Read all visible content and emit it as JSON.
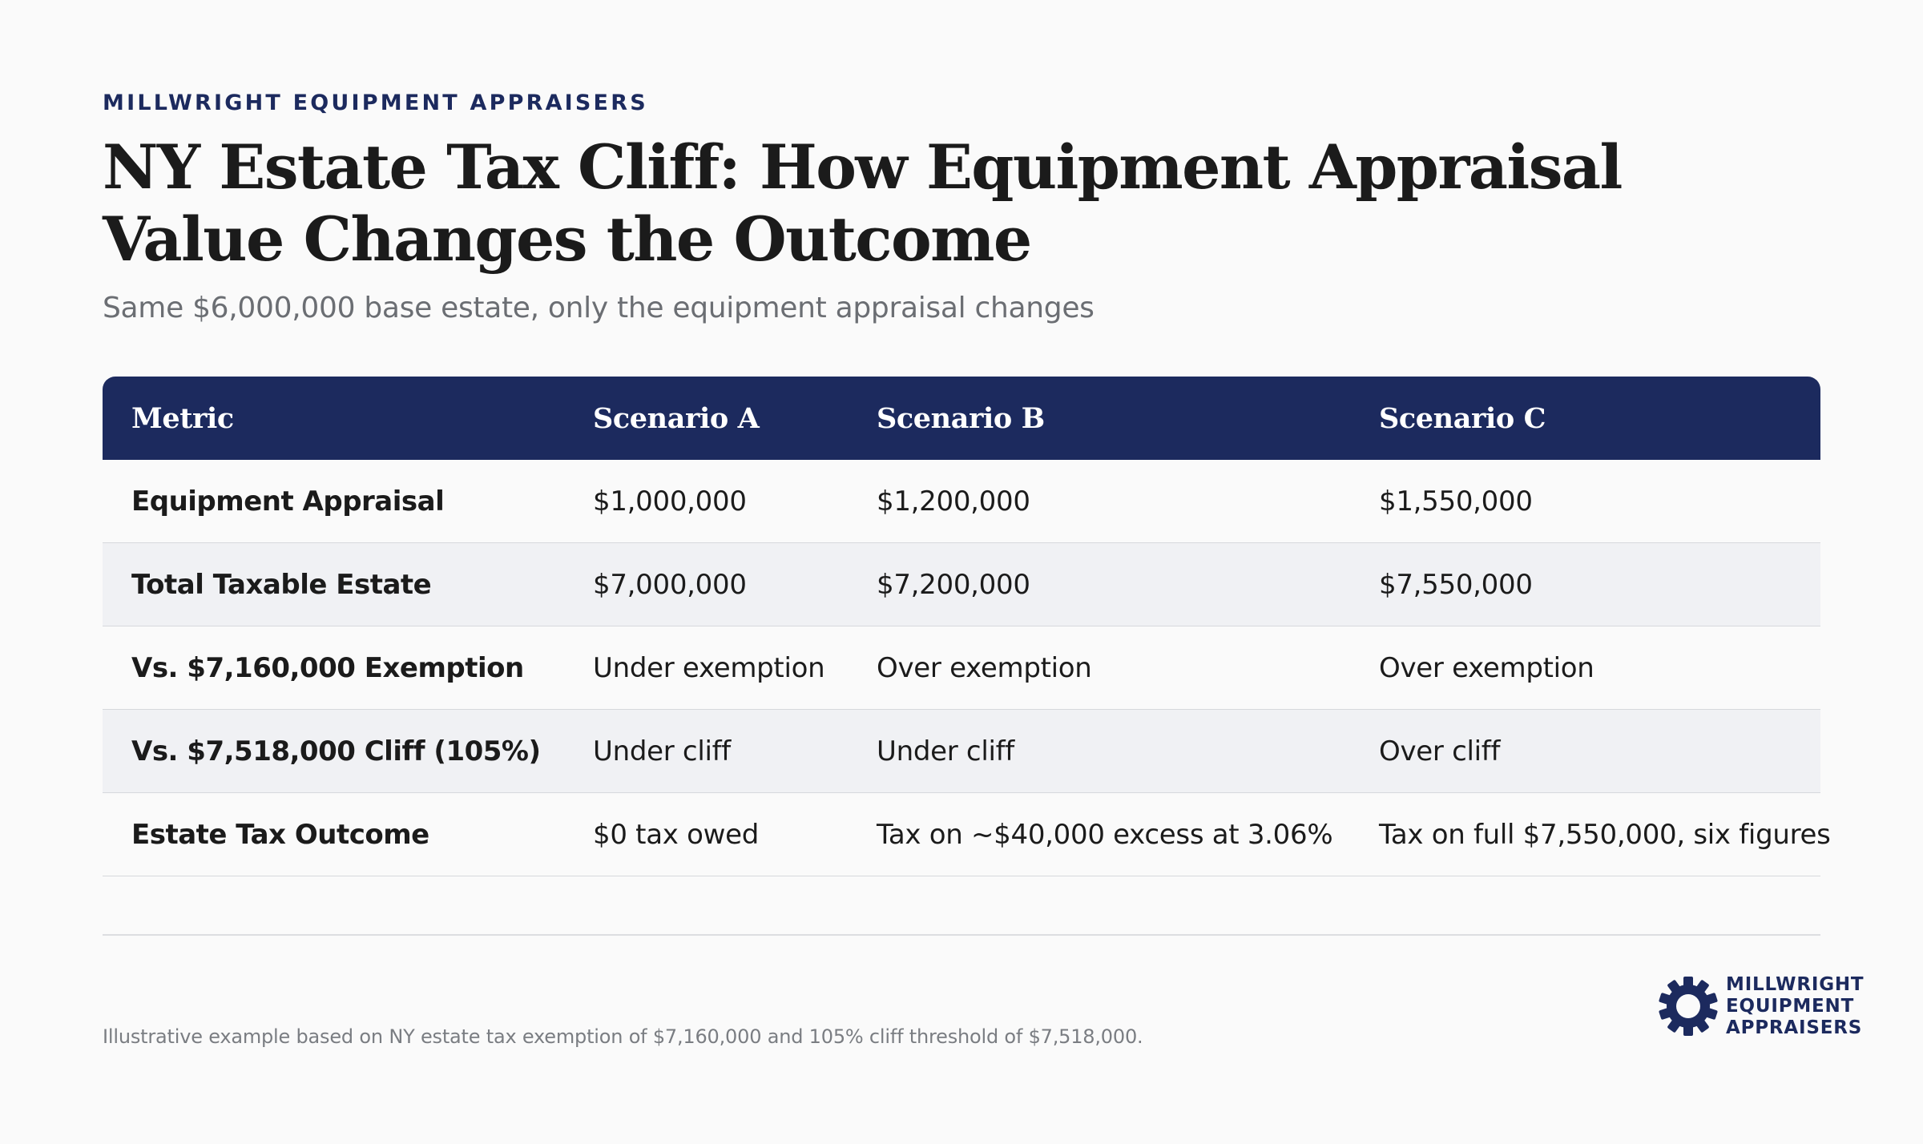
{
  "header": {
    "eyebrow": "MILLWRIGHT EQUIPMENT APPRAISERS",
    "title": "NY Estate Tax Cliff: How Equipment Appraisal Value Changes the Outcome",
    "subtitle": "Same $6,000,000 base estate, only the equipment appraisal changes"
  },
  "table": {
    "headers": [
      "Metric",
      "Scenario A",
      "Scenario B",
      "Scenario C"
    ],
    "rows": [
      [
        "Equipment Appraisal",
        "$1,000,000",
        "$1,200,000",
        "$1,550,000"
      ],
      [
        "Total Taxable Estate",
        "$7,000,000",
        "$7,200,000",
        "$7,550,000"
      ],
      [
        "Vs. $7,160,000 Exemption",
        "Under exemption",
        "Over exemption",
        "Over exemption"
      ],
      [
        "Vs. $7,518,000 Cliff (105%)",
        "Under cliff",
        "Under cliff",
        "Over cliff"
      ],
      [
        "Estate Tax Outcome",
        "$0 tax owed",
        "Tax on ~$40,000 excess at 3.06%",
        "Tax on full $7,550,000, six figures"
      ]
    ]
  },
  "footer": {
    "note": "Illustrative example based on NY estate tax exemption of $7,160,000 and 105% cliff threshold of $7,518,000.",
    "logo_lines": [
      "MILLWRIGHT",
      "EQUIPMENT",
      "APPRAISERS"
    ],
    "logo_icon": "gear-icon"
  },
  "colors": {
    "brand_navy": "#1c2a5e",
    "row_alt": "#f0f1f4",
    "background": "#fafafa"
  }
}
